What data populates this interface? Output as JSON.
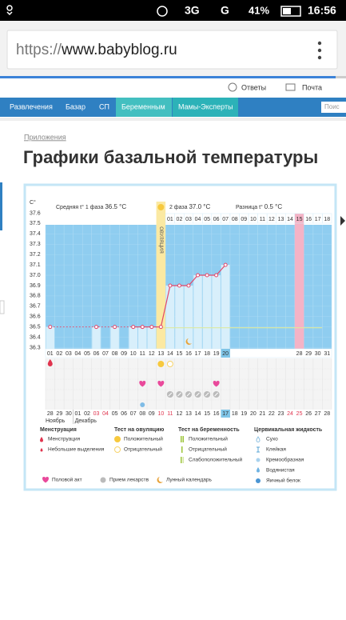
{
  "status_bar": {
    "network": "3G",
    "signal": "G",
    "battery": "41%",
    "time": "16:56"
  },
  "browser": {
    "url_scheme": "https://",
    "url_host": "www.babyblog.ru"
  },
  "header": {
    "links": [
      "Ответы",
      "Почта"
    ]
  },
  "nav": {
    "items": [
      "Развлечения",
      "Базар",
      "СП",
      "Беременным",
      "Мамы-Эксперты"
    ],
    "search": "Поис"
  },
  "breadcrumb": "Приложения",
  "title": "Графики базальной температуры",
  "chart_data": {
    "type": "line",
    "y_unit": "C°",
    "summary": {
      "phase1_label": "Средняя t° 1 фаза",
      "phase1": "36.5 °C",
      "phase2_label": "2 фаза",
      "phase2": "37.0 °C",
      "diff_label": "Разница t°",
      "diff": "0.5 °C"
    },
    "ovulation": {
      "label": "ОВУЛЯЦИЯ",
      "category": "13"
    },
    "period_category": "28",
    "today": "20",
    "categories": [
      "01",
      "02",
      "03",
      "04",
      "05",
      "06",
      "07",
      "08",
      "09",
      "10",
      "11",
      "12",
      "13",
      "14",
      "15",
      "16",
      "17",
      "18",
      "19",
      "20",
      null,
      null,
      null,
      null,
      null,
      null,
      null,
      "28",
      "29",
      "30",
      "31"
    ],
    "values": [
      36.5,
      null,
      null,
      null,
      null,
      36.5,
      null,
      36.5,
      null,
      36.5,
      36.5,
      36.5,
      36.5,
      36.9,
      36.9,
      36.9,
      37.0,
      37.0,
      37.0,
      37.1,
      null,
      null,
      null,
      null,
      null,
      null,
      null,
      null,
      null,
      null,
      null
    ],
    "color": "#e2476a",
    "coverline": 36.5,
    "phase2_days": [
      null,
      null,
      null,
      null,
      null,
      null,
      null,
      null,
      null,
      null,
      null,
      null,
      null,
      "01",
      "02",
      "03",
      "04",
      "05",
      "06",
      "07",
      "08",
      "09",
      "10",
      "11",
      "12",
      "13",
      "14",
      "15",
      "16",
      "17",
      "18"
    ],
    "dates": [
      "28",
      "29",
      "30",
      "01",
      "02",
      "03",
      "04",
      "05",
      "06",
      "07",
      "08",
      "09",
      "10",
      "11",
      "12",
      "13",
      "14",
      "15",
      "16",
      "17",
      "18",
      "19",
      "20",
      "21",
      "22",
      "23",
      "24",
      "25",
      "26",
      "27",
      "28"
    ],
    "date_red": [
      false,
      false,
      false,
      false,
      false,
      true,
      true,
      false,
      false,
      false,
      false,
      false,
      true,
      true,
      false,
      false,
      false,
      false,
      false,
      false,
      false,
      false,
      false,
      false,
      false,
      false,
      true,
      true,
      false,
      false,
      false
    ],
    "months": [
      "Ноябрь",
      "Декабрь"
    ],
    "events": {
      "menstruation": [
        "01"
      ],
      "ovulation_positive": [
        "13"
      ],
      "ovulation_negative": [
        "14"
      ],
      "intercourse": [
        "11",
        "13",
        "19"
      ],
      "medication": [
        "14",
        "15",
        "16",
        "17",
        "18",
        "19"
      ],
      "cervical": [
        "11"
      ],
      "moon": [
        "16"
      ]
    },
    "ylim": [
      36.25,
      37.65
    ],
    "yticks": [
      36.3,
      36.4,
      36.5,
      36.6,
      36.7,
      36.8,
      36.9,
      {
        "value": 37.0,
        "label": "37.0"
      },
      37.1,
      37.2,
      37.3,
      37.4,
      37.5,
      37.6
    ]
  },
  "legend": {
    "groups": [
      {
        "title": "Менструация",
        "items": [
          "Менструация",
          "Небольшие выделения"
        ]
      },
      {
        "title": "Тест на овуляцию",
        "items": [
          "Положительный",
          "Отрицательный"
        ]
      },
      {
        "title": "Тест на беременность",
        "items": [
          "Положительный",
          "Отрицательный",
          "Слабоположительный"
        ]
      },
      {
        "title": "Цервикальная жидкость",
        "items": [
          "Сухо",
          "Клейкая",
          "Кремообразная",
          "Водянистая",
          "Яичный белок"
        ]
      }
    ],
    "other": [
      "Половой акт",
      "Прием лекарств",
      "Лунный календарь"
    ]
  }
}
